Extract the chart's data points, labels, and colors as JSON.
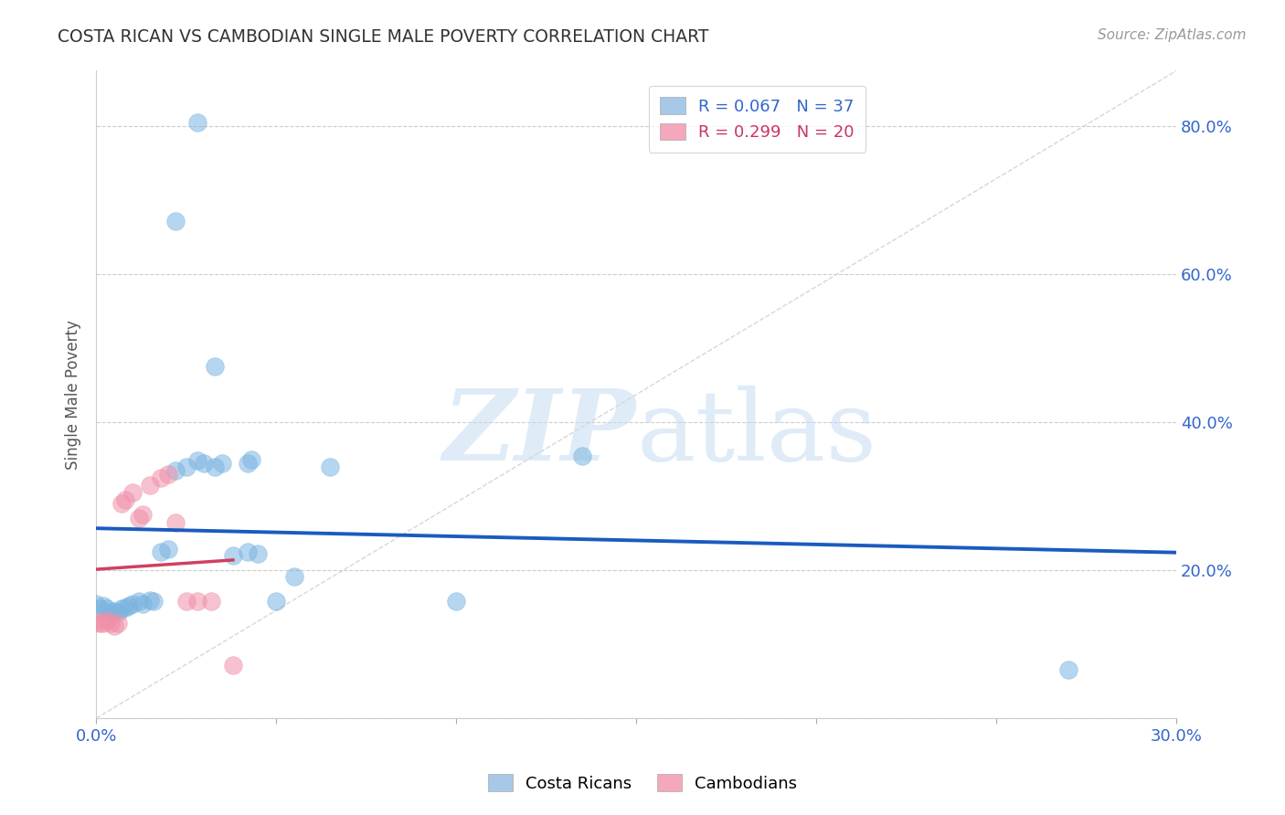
{
  "title": "COSTA RICAN VS CAMBODIAN SINGLE MALE POVERTY CORRELATION CHART",
  "source": "Source: ZipAtlas.com",
  "ylabel": "Single Male Poverty",
  "xlim": [
    0.0,
    0.3
  ],
  "ylim": [
    0.0,
    0.875
  ],
  "xtick_positions": [
    0.0,
    0.05,
    0.1,
    0.15,
    0.2,
    0.25,
    0.3
  ],
  "xtick_labels": [
    "0.0%",
    "",
    "",
    "",
    "",
    "",
    "30.0%"
  ],
  "ytick_positions": [
    0.0,
    0.2,
    0.4,
    0.6,
    0.8
  ],
  "ytick_labels_right": [
    "",
    "20.0%",
    "40.0%",
    "60.0%",
    "80.0%"
  ],
  "background_color": "#ffffff",
  "grid_color": "#cccccc",
  "scatter_blue_color": "#7ab4e0",
  "scatter_pink_color": "#f090a8",
  "trend_blue_color": "#1a5bbf",
  "trend_pink_color": "#d04060",
  "diag_color": "#cccccc",
  "cr_x": [
    0.028,
    0.022,
    0.033,
    0.042,
    0.043,
    0.0,
    0.001,
    0.002,
    0.003,
    0.004,
    0.005,
    0.006,
    0.007,
    0.008,
    0.009,
    0.01,
    0.012,
    0.013,
    0.015,
    0.016,
    0.018,
    0.02,
    0.022,
    0.025,
    0.028,
    0.03,
    0.033,
    0.035,
    0.038,
    0.042,
    0.045,
    0.05,
    0.055,
    0.065,
    0.1,
    0.135,
    0.27
  ],
  "cr_y": [
    0.805,
    0.672,
    0.475,
    0.345,
    0.35,
    0.155,
    0.148,
    0.152,
    0.148,
    0.143,
    0.145,
    0.143,
    0.148,
    0.15,
    0.152,
    0.155,
    0.158,
    0.155,
    0.16,
    0.158,
    0.225,
    0.228,
    0.335,
    0.34,
    0.348,
    0.345,
    0.34,
    0.345,
    0.22,
    0.225,
    0.222,
    0.158,
    0.192,
    0.34,
    0.158,
    0.355,
    0.065
  ],
  "cam_x": [
    0.0,
    0.001,
    0.002,
    0.003,
    0.004,
    0.005,
    0.006,
    0.007,
    0.008,
    0.01,
    0.012,
    0.013,
    0.015,
    0.018,
    0.02,
    0.022,
    0.025,
    0.028,
    0.032,
    0.038
  ],
  "cam_y": [
    0.13,
    0.128,
    0.128,
    0.132,
    0.128,
    0.125,
    0.128,
    0.29,
    0.295,
    0.305,
    0.27,
    0.275,
    0.315,
    0.325,
    0.33,
    0.265,
    0.158,
    0.158,
    0.158,
    0.072
  ],
  "legend_blue_label": "R = 0.067   N = 37",
  "legend_pink_label": "R = 0.299   N = 20",
  "legend_blue_color": "#a8c8e8",
  "legend_pink_color": "#f4a8bc",
  "bottom_legend_blue": "Costa Ricans",
  "bottom_legend_pink": "Cambodians"
}
